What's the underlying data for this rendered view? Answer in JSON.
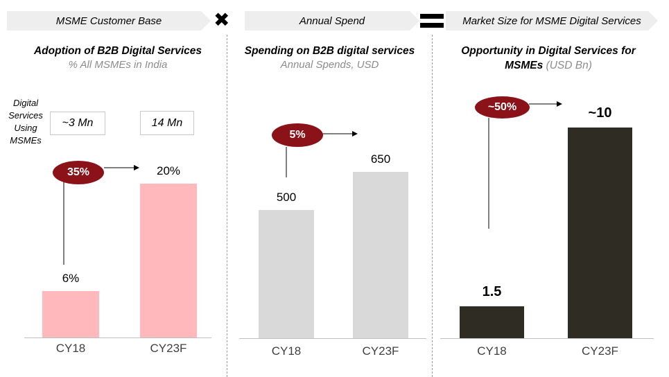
{
  "header": {
    "banner1": "MSME Customer Base",
    "banner2": "Annual Spend",
    "banner3": "Market Size for MSME Digital Services",
    "times_symbol": "✖",
    "equals_symbol": "="
  },
  "colors": {
    "pink_bar": "#ffb9bc",
    "grey_bar": "#d9d9d9",
    "dark_bar": "#2e2c23",
    "growth_badge": "#8b1218"
  },
  "panel1": {
    "title": "Adoption of B2B Digital Services",
    "subtitle": "% All MSMEs in India",
    "side_label": "Digital Services Using MSMEs",
    "box1": "~3 Mn",
    "box2": "14 Mn",
    "growth": "35%"
  },
  "panel2": {
    "title": "Spending on B2B digital services",
    "subtitle": "Annual Spends, USD",
    "growth": "5%"
  },
  "panel3": {
    "title_bold": "Opportunity in Digital Services for MSMEs",
    "title_unit": "(USD Bn)",
    "growth": "~50%"
  },
  "chart_data": [
    {
      "type": "bar",
      "title": "Adoption of B2B Digital Services",
      "subtitle": "% All MSMEs in India",
      "categories": [
        "CY18",
        "CY23F"
      ],
      "values": [
        6,
        20
      ],
      "value_labels": [
        "6%",
        "20%"
      ],
      "annotations": [
        "35%"
      ]
    },
    {
      "type": "bar",
      "title": "Spending on B2B digital services",
      "subtitle": "Annual Spends, USD",
      "categories": [
        "CY18",
        "CY23F"
      ],
      "values": [
        500,
        650
      ],
      "value_labels": [
        "500",
        "650"
      ],
      "annotations": [
        "5%"
      ]
    },
    {
      "type": "bar",
      "title": "Opportunity in Digital Services for MSMEs",
      "subtitle": "(USD Bn)",
      "categories": [
        "CY18",
        "CY23F"
      ],
      "values": [
        1.5,
        10
      ],
      "value_labels": [
        "1.5",
        "~10"
      ],
      "annotations": [
        "~50%"
      ]
    }
  ]
}
